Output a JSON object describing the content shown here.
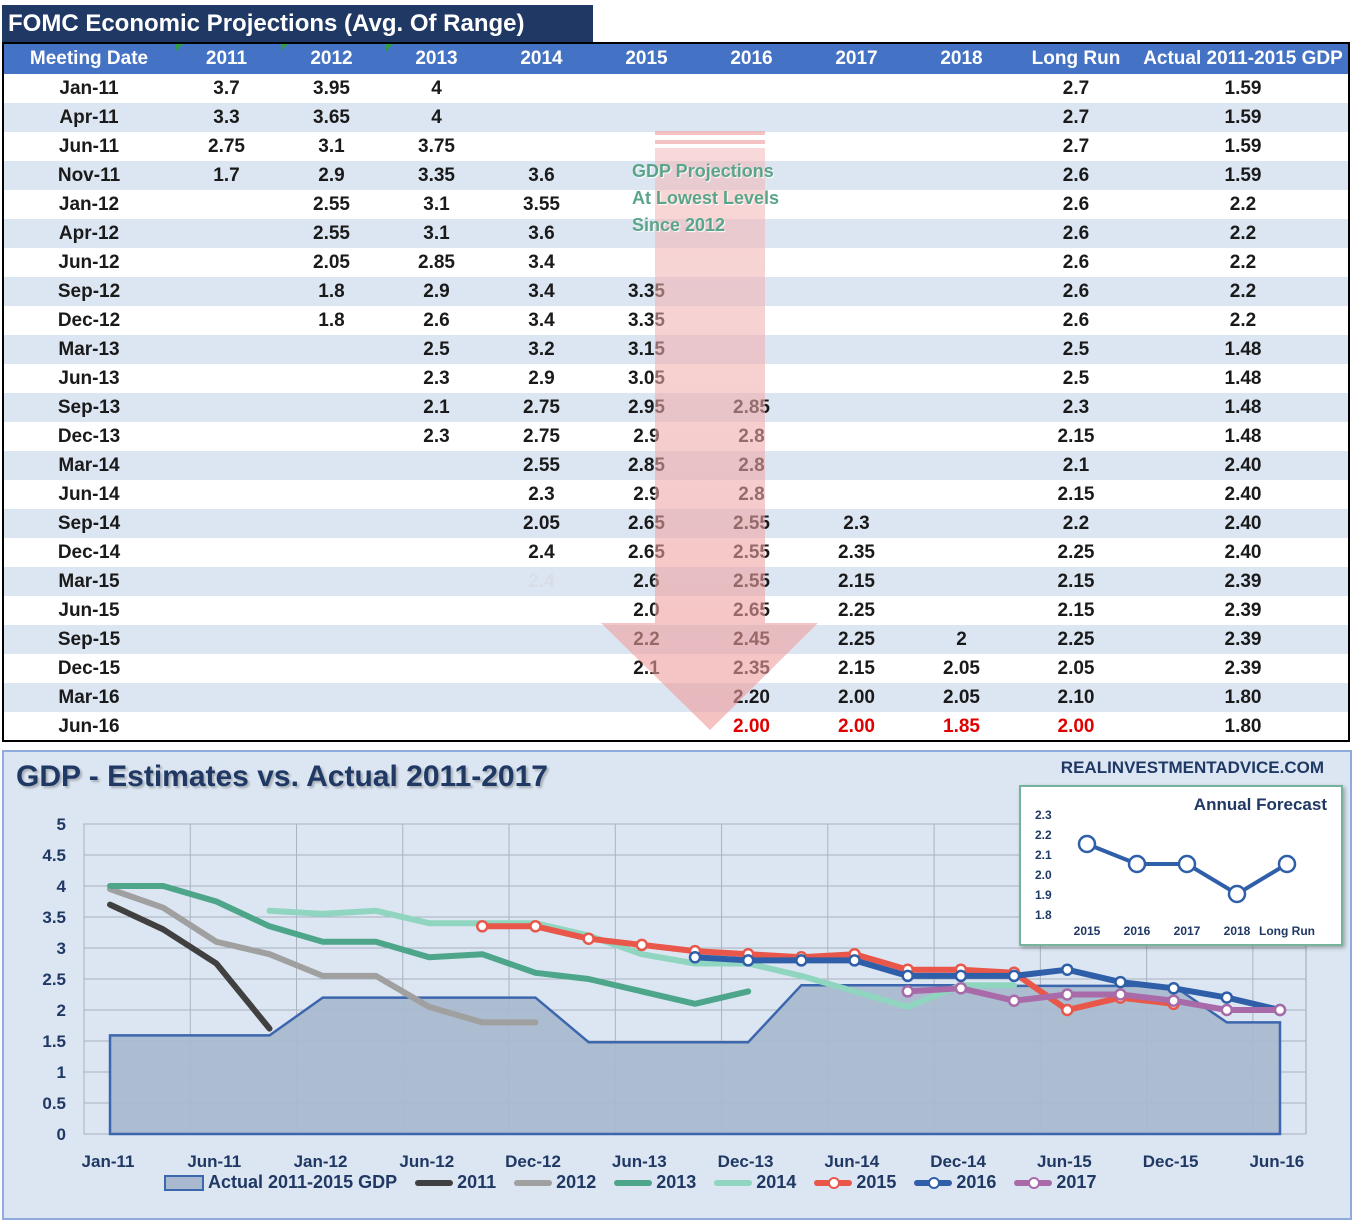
{
  "table": {
    "title": "FOMC Economic Projections (Avg. Of Range)",
    "headers": [
      "Meeting Date",
      "2011",
      "2012",
      "2013",
      "2014",
      "2015",
      "2016",
      "2017",
      "2018",
      "Long Run",
      "Actual 2011-2015 GDP"
    ],
    "rows": [
      [
        "Jan-11",
        "3.7",
        "3.95",
        "4",
        "",
        "",
        "",
        "",
        "",
        "2.7",
        "1.59"
      ],
      [
        "Apr-11",
        "3.3",
        "3.65",
        "4",
        "",
        "",
        "",
        "",
        "",
        "2.7",
        "1.59"
      ],
      [
        "Jun-11",
        "2.75",
        "3.1",
        "3.75",
        "",
        "",
        "",
        "",
        "",
        "2.7",
        "1.59"
      ],
      [
        "Nov-11",
        "1.7",
        "2.9",
        "3.35",
        "3.6",
        "",
        "",
        "",
        "",
        "2.6",
        "1.59"
      ],
      [
        "Jan-12",
        "",
        "2.55",
        "3.1",
        "3.55",
        "",
        "",
        "",
        "",
        "2.6",
        "2.2"
      ],
      [
        "Apr-12",
        "",
        "2.55",
        "3.1",
        "3.6",
        "",
        "",
        "",
        "",
        "2.6",
        "2.2"
      ],
      [
        "Jun-12",
        "",
        "2.05",
        "2.85",
        "3.4",
        "",
        "",
        "",
        "",
        "2.6",
        "2.2"
      ],
      [
        "Sep-12",
        "",
        "1.8",
        "2.9",
        "3.4",
        "3.35",
        "",
        "",
        "",
        "2.6",
        "2.2"
      ],
      [
        "Dec-12",
        "",
        "1.8",
        "2.6",
        "3.4",
        "3.35",
        "",
        "",
        "",
        "2.6",
        "2.2"
      ],
      [
        "Mar-13",
        "",
        "",
        "2.5",
        "3.2",
        "3.15",
        "",
        "",
        "",
        "2.5",
        "1.48"
      ],
      [
        "Jun-13",
        "",
        "",
        "2.3",
        "2.9",
        "3.05",
        "",
        "",
        "",
        "2.5",
        "1.48"
      ],
      [
        "Sep-13",
        "",
        "",
        "2.1",
        "2.75",
        "2.95",
        "2.85",
        "",
        "",
        "2.3",
        "1.48"
      ],
      [
        "Dec-13",
        "",
        "",
        "2.3",
        "2.75",
        "2.9",
        "2.8",
        "",
        "",
        "2.15",
        "1.48"
      ],
      [
        "Mar-14",
        "",
        "",
        "",
        "2.55",
        "2.85",
        "2.8",
        "",
        "",
        "2.1",
        "2.40"
      ],
      [
        "Jun-14",
        "",
        "",
        "",
        "2.3",
        "2.9",
        "2.8",
        "",
        "",
        "2.15",
        "2.40"
      ],
      [
        "Sep-14",
        "",
        "",
        "",
        "2.05",
        "2.65",
        "2.55",
        "2.3",
        "",
        "2.2",
        "2.40"
      ],
      [
        "Dec-14",
        "",
        "",
        "",
        "2.4",
        "2.65",
        "2.55",
        "2.35",
        "",
        "2.25",
        "2.40"
      ],
      [
        "Mar-15",
        "",
        "",
        "",
        "2.4",
        "2.6",
        "2.55",
        "2.15",
        "",
        "2.15",
        "2.39"
      ],
      [
        "Jun-15",
        "",
        "",
        "",
        "",
        "2.0",
        "2.65",
        "2.25",
        "",
        "2.15",
        "2.39"
      ],
      [
        "Sep-15",
        "",
        "",
        "",
        "",
        "2.2",
        "2.45",
        "2.25",
        "2",
        "2.25",
        "2.39"
      ],
      [
        "Dec-15",
        "",
        "",
        "",
        "",
        "2.1",
        "2.35",
        "2.15",
        "2.05",
        "2.05",
        "2.39"
      ],
      [
        "Mar-16",
        "",
        "",
        "",
        "",
        "",
        "2.20",
        "2.00",
        "2.05",
        "2.10",
        "1.80"
      ],
      [
        "Jun-16",
        "",
        "",
        "",
        "",
        "",
        "2.00",
        "2.00",
        "1.85",
        "2.00",
        "1.80"
      ]
    ],
    "annotation": [
      "GDP Projections",
      "At Lowest Levels",
      "Since 2012"
    ]
  },
  "chart_data": [
    {
      "type": "line",
      "title": "GDP - Estimates vs. Actual 2011-2017",
      "source_label": "REALINVESTMENTADVICE.COM",
      "ylim": [
        0,
        5
      ],
      "yticks": [
        "0",
        "0.5",
        "1",
        "1.5",
        "2",
        "2.5",
        "3",
        "3.5",
        "4",
        "4.5",
        "5"
      ],
      "xticks": [
        "Jan-11",
        "Jun-11",
        "Jan-12",
        "Jun-12",
        "Dec-12",
        "Jun-13",
        "Dec-13",
        "Jun-14",
        "Dec-14",
        "Jun-15",
        "Dec-15",
        "Jun-16"
      ],
      "meetings": [
        "Jan-11",
        "Apr-11",
        "Jun-11",
        "Nov-11",
        "Jan-12",
        "Apr-12",
        "Jun-12",
        "Sep-12",
        "Dec-12",
        "Mar-13",
        "Jun-13",
        "Sep-13",
        "Dec-13",
        "Mar-14",
        "Jun-14",
        "Sep-14",
        "Dec-14",
        "Mar-15",
        "Jun-15",
        "Sep-15",
        "Dec-15",
        "Mar-16",
        "Jun-16"
      ],
      "series": [
        {
          "name": "Actual 2011-2015 GDP",
          "kind": "area",
          "color": "#3c66ad",
          "values": [
            1.59,
            1.59,
            1.59,
            1.59,
            2.2,
            2.2,
            2.2,
            2.2,
            2.2,
            1.48,
            1.48,
            1.48,
            1.48,
            2.4,
            2.4,
            2.4,
            2.4,
            2.39,
            2.39,
            2.39,
            2.39,
            1.8,
            1.8
          ]
        },
        {
          "name": "2011",
          "color": "#404040",
          "markers": false,
          "values": [
            3.7,
            3.3,
            2.75,
            1.7,
            null,
            null,
            null,
            null,
            null,
            null,
            null,
            null,
            null,
            null,
            null,
            null,
            null,
            null,
            null,
            null,
            null,
            null,
            null
          ]
        },
        {
          "name": "2012",
          "color": "#a0a0a0",
          "markers": false,
          "values": [
            3.95,
            3.65,
            3.1,
            2.9,
            2.55,
            2.55,
            2.05,
            1.8,
            1.8,
            null,
            null,
            null,
            null,
            null,
            null,
            null,
            null,
            null,
            null,
            null,
            null,
            null,
            null
          ]
        },
        {
          "name": "2013",
          "color": "#4da58a",
          "markers": false,
          "values": [
            4,
            4,
            3.75,
            3.35,
            3.1,
            3.1,
            2.85,
            2.9,
            2.6,
            2.5,
            2.3,
            2.1,
            2.3,
            null,
            null,
            null,
            null,
            null,
            null,
            null,
            null,
            null,
            null
          ]
        },
        {
          "name": "2014",
          "color": "#8fd5bf",
          "markers": false,
          "values": [
            null,
            null,
            null,
            3.6,
            3.55,
            3.6,
            3.4,
            3.4,
            3.4,
            3.2,
            2.9,
            2.75,
            2.75,
            2.55,
            2.3,
            2.05,
            2.4,
            2.4,
            null,
            null,
            null,
            null,
            null
          ]
        },
        {
          "name": "2015",
          "color": "#e8574a",
          "markers": true,
          "values": [
            null,
            null,
            null,
            null,
            null,
            null,
            null,
            3.35,
            3.35,
            3.15,
            3.05,
            2.95,
            2.9,
            2.85,
            2.9,
            2.65,
            2.65,
            2.6,
            2.0,
            2.2,
            2.1,
            null,
            null
          ]
        },
        {
          "name": "2016",
          "color": "#2f5fa8",
          "markers": true,
          "values": [
            null,
            null,
            null,
            null,
            null,
            null,
            null,
            null,
            null,
            null,
            null,
            2.85,
            2.8,
            2.8,
            2.8,
            2.55,
            2.55,
            2.55,
            2.65,
            2.45,
            2.35,
            2.2,
            2.0
          ]
        },
        {
          "name": "2017",
          "color": "#a86aa8",
          "markers": true,
          "values": [
            null,
            null,
            null,
            null,
            null,
            null,
            null,
            null,
            null,
            null,
            null,
            null,
            null,
            null,
            null,
            2.3,
            2.35,
            2.15,
            2.25,
            2.25,
            2.15,
            2.0,
            2.0
          ]
        }
      ]
    },
    {
      "type": "line",
      "title": "Annual Forecast",
      "categories": [
        "2015",
        "2016",
        "2017",
        "2018",
        "Long Run"
      ],
      "values": [
        2.15,
        2.05,
        2.05,
        1.9,
        2.05
      ],
      "yticks": [
        "1.8",
        "1.9",
        "2.0",
        "2.1",
        "2.2",
        "2.3"
      ],
      "ylim": [
        1.8,
        2.3
      ],
      "color": "#2f5fa8"
    }
  ]
}
